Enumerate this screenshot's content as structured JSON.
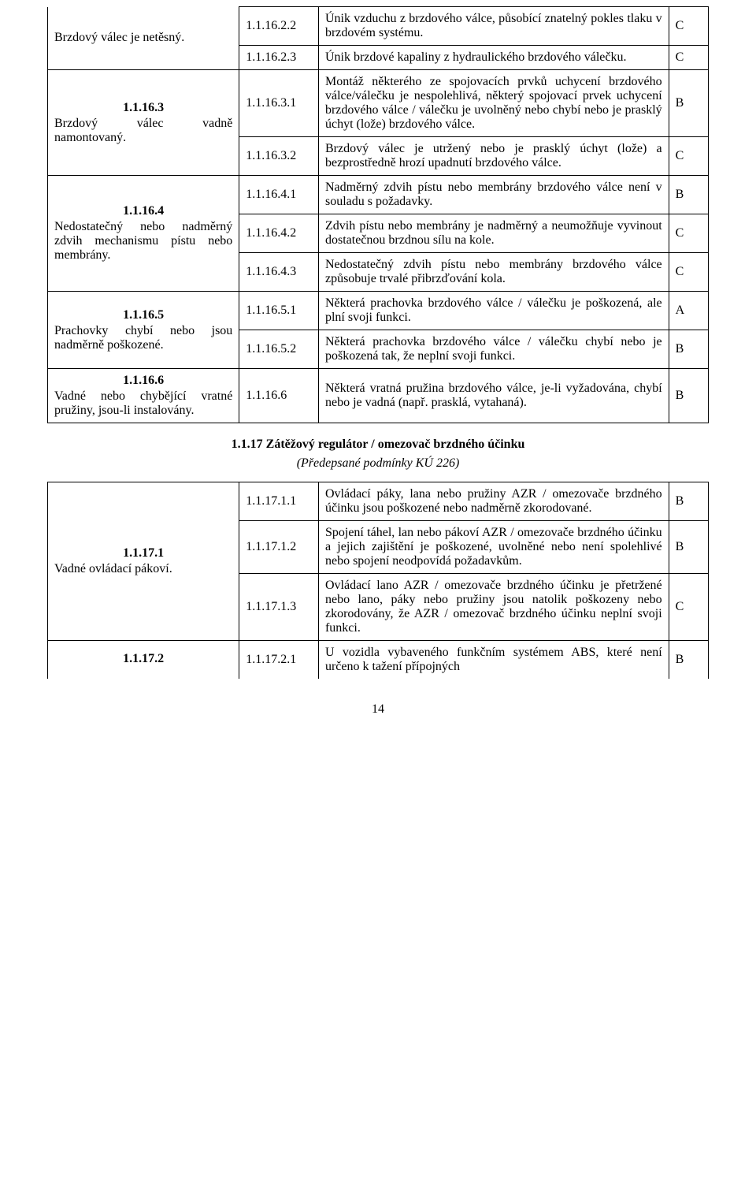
{
  "table1": {
    "rows": [
      {
        "leftNum": "",
        "leftDesc": "Brzdový válec je netěsný.",
        "code": "1.1.16.2.2",
        "text": "Únik vzduchu z brzdového válce, působící znatelný pokles tlaku v brzdovém systému.",
        "grade": "C",
        "leftRowspan": 2,
        "leftBorderTop": false
      },
      {
        "code": "1.1.16.2.3",
        "text": "Únik brzdové kapaliny z hydraulického brzdového válečku.",
        "grade": "C"
      },
      {
        "leftNum": "1.1.16.3",
        "leftDesc": "Brzdový válec vadně namontovaný.",
        "code": "1.1.16.3.1",
        "text": "Montáž některého ze spojovacích prvků uchycení brzdového válce/válečku je nespolehlivá, některý spojovací prvek uchycení brzdového válce / válečku je uvolněný nebo chybí nebo je prasklý úchyt (lože) brzdového válce.",
        "grade": "B",
        "leftRowspan": 2
      },
      {
        "code": "1.1.16.3.2",
        "text": "Brzdový válec je utržený nebo je prasklý úchyt (lože) a bezprostředně hrozí upadnutí brzdového válce.",
        "grade": "C"
      },
      {
        "leftNum": "1.1.16.4",
        "leftDesc": "Nedostatečný nebo nadměrný zdvih mechanismu pístu nebo membrány.",
        "code": "1.1.16.4.1",
        "text": "Nadměrný zdvih pístu nebo membrány brzdového válce není v souladu s požadavky.",
        "grade": "B",
        "leftRowspan": 3
      },
      {
        "code": "1.1.16.4.2",
        "text": "Zdvih pístu nebo membrány je nadměrný a neumožňuje vyvinout dostatečnou brzdnou sílu na kole.",
        "grade": "C"
      },
      {
        "code": "1.1.16.4.3",
        "text": "Nedostatečný zdvih pístu nebo membrány brzdového válce způsobuje trvalé přibrzďování kola.",
        "grade": "C"
      },
      {
        "leftNum": "1.1.16.5",
        "leftDesc": "Prachovky chybí nebo jsou nadměrně poškozené.",
        "code": "1.1.16.5.1",
        "text": "Některá prachovka brzdového válce / válečku je poškozená, ale plní svoji funkci.",
        "grade": "A",
        "leftRowspan": 2
      },
      {
        "code": "1.1.16.5.2",
        "text": "Některá prachovka brzdového válce / válečku chybí nebo je poškozená tak, že neplní svoji funkci.",
        "grade": "B"
      },
      {
        "leftNum": "1.1.16.6",
        "leftDesc": "Vadné nebo chybějící vratné pružiny, jsou-li instalovány.",
        "code": "1.1.16.6",
        "text": "Některá vratná pružina brzdového válce, je-li vyžadována, chybí nebo je vadná (např. prasklá, vytahaná).",
        "grade": "B",
        "leftRowspan": 1
      }
    ]
  },
  "section": {
    "title": "1.1.17 Zátěžový regulátor / omezovač brzdného účinku",
    "sub": "(Předepsané podmínky KÚ 226)"
  },
  "table2": {
    "rows": [
      {
        "leftNum": "1.1.17.1",
        "leftDesc": "Vadné ovládací pákoví.",
        "code": "1.1.17.1.1",
        "text": "Ovládací páky, lana nebo pružiny AZR / omezovače brzdného účinku jsou poškozené nebo nadměrně zkorodované.",
        "grade": "B",
        "leftRowspan": 3
      },
      {
        "code": "1.1.17.1.2",
        "text": "Spojení táhel, lan nebo pákoví AZR / omezovače brzdného účinku a jejich zajištění je poškozené, uvolněné nebo není spolehlivé nebo spojení neodpovídá požadavkům.",
        "grade": "B"
      },
      {
        "code": "1.1.17.1.3",
        "text": "Ovládací lano AZR / omezovače brzdného účinku je přetržené nebo lano, páky nebo pružiny jsou natolik poškozeny nebo zkorodovány, že AZR / omezovač brzdného účinku neplní svoji funkci.",
        "grade": "C"
      },
      {
        "leftNum": "1.1.17.2",
        "leftDesc": "",
        "code": "1.1.17.2.1",
        "text": "U vozidla vybaveného funkčním systémem ABS, které není určeno k tažení přípojných",
        "grade": "B",
        "leftRowspan": 1,
        "borderBottom": false,
        "leftBold": true
      }
    ]
  },
  "pageNumber": "14"
}
